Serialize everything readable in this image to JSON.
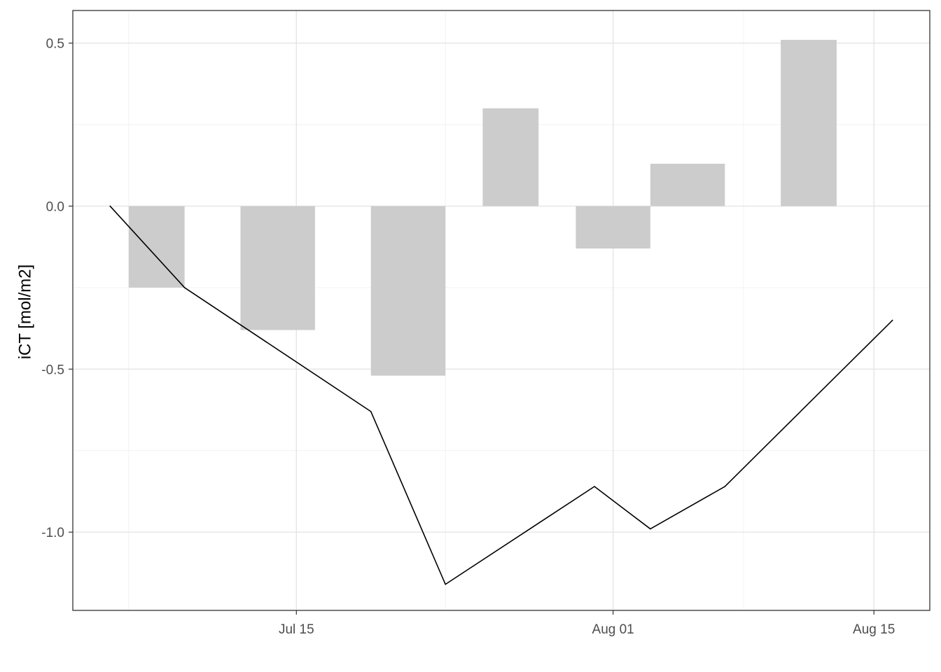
{
  "chart_data": {
    "type": "bar+line",
    "title": "",
    "xlabel": "",
    "ylabel": "iCT [mol/m2]",
    "x_axis": {
      "type": "date",
      "range": [
        "2025-07-03",
        "2025-08-18"
      ],
      "major_ticks": [
        {
          "date": "2025-07-15",
          "label": "Jul 15"
        },
        {
          "date": "2025-08-01",
          "label": "Aug 01"
        },
        {
          "date": "2025-08-15",
          "label": "Aug 15"
        }
      ],
      "minor_gridlines": [
        "2025-07-06",
        "2025-07-23",
        "2025-08-08"
      ]
    },
    "y_axis": {
      "range": [
        -1.24,
        0.6
      ],
      "major_ticks": [
        {
          "value": 0.5,
          "label": "0.5"
        },
        {
          "value": 0.0,
          "label": "0.0"
        },
        {
          "value": -0.5,
          "label": "-0.5"
        },
        {
          "value": -1.0,
          "label": "-1.0"
        }
      ],
      "minor_gridlines": [
        0.25,
        -0.25,
        -0.75
      ]
    },
    "grid": true,
    "legend": "none",
    "bars": [
      {
        "start": "2025-07-06",
        "end": "2025-07-09",
        "value": -0.25
      },
      {
        "start": "2025-07-12",
        "end": "2025-07-16",
        "value": -0.38
      },
      {
        "start": "2025-07-19",
        "end": "2025-07-23",
        "value": -0.52
      },
      {
        "start": "2025-07-25",
        "end": "2025-07-28",
        "value": 0.3
      },
      {
        "start": "2025-07-30",
        "end": "2025-08-03",
        "value": -0.13
      },
      {
        "start": "2025-08-03",
        "end": "2025-08-07",
        "value": 0.13
      },
      {
        "start": "2025-08-10",
        "end": "2025-08-13",
        "value": 0.51
      }
    ],
    "line": [
      {
        "x": "2025-07-05",
        "y": 0.0
      },
      {
        "x": "2025-07-09",
        "y": -0.25
      },
      {
        "x": "2025-07-19",
        "y": -0.63
      },
      {
        "x": "2025-07-23",
        "y": -1.16
      },
      {
        "x": "2025-07-31",
        "y": -0.86
      },
      {
        "x": "2025-08-03",
        "y": -0.99
      },
      {
        "x": "2025-08-07",
        "y": -0.86
      },
      {
        "x": "2025-08-16",
        "y": -0.35
      }
    ],
    "colors": {
      "bar_fill": "#cccccc",
      "line": "#000000",
      "grid_major": "#e5e5e5",
      "grid_minor": "#f2f2f2",
      "panel_border": "#333333"
    }
  }
}
